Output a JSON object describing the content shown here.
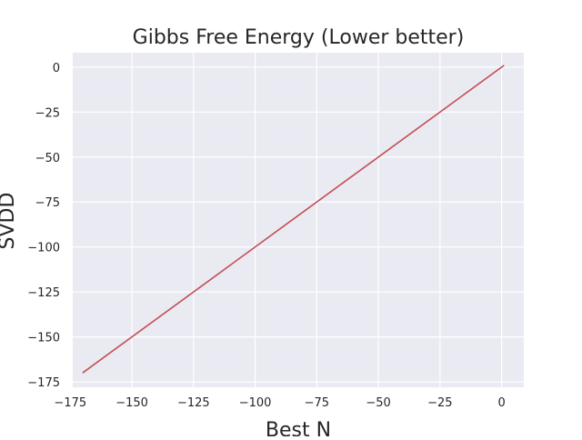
{
  "chart_data": {
    "type": "line",
    "title": "Gibbs Free Energy (Lower better)",
    "xlabel": "Best N",
    "ylabel": "SVDD",
    "xlim": [
      -174,
      9
    ],
    "ylim": [
      -178,
      8
    ],
    "xticks": [
      -175,
      -150,
      -125,
      -100,
      -75,
      -50,
      -25,
      0
    ],
    "yticks": [
      0,
      -25,
      -50,
      -75,
      -100,
      -125,
      -150,
      -175
    ],
    "xtick_labels": [
      "−175",
      "−150",
      "−125",
      "−100",
      "−75",
      "−50",
      "−25",
      "0"
    ],
    "ytick_labels": [
      "0",
      "−25",
      "−50",
      "−75",
      "−100",
      "−125",
      "−150",
      "−175"
    ],
    "grid": true,
    "legend": "none",
    "series": [
      {
        "color": "#c44e52",
        "x": [
          -170,
          1
        ],
        "y": [
          -170,
          1
        ]
      }
    ],
    "colors": {
      "plot_background": "#eaeaf2",
      "grid": "#ffffff",
      "line": "#c44e52"
    }
  }
}
